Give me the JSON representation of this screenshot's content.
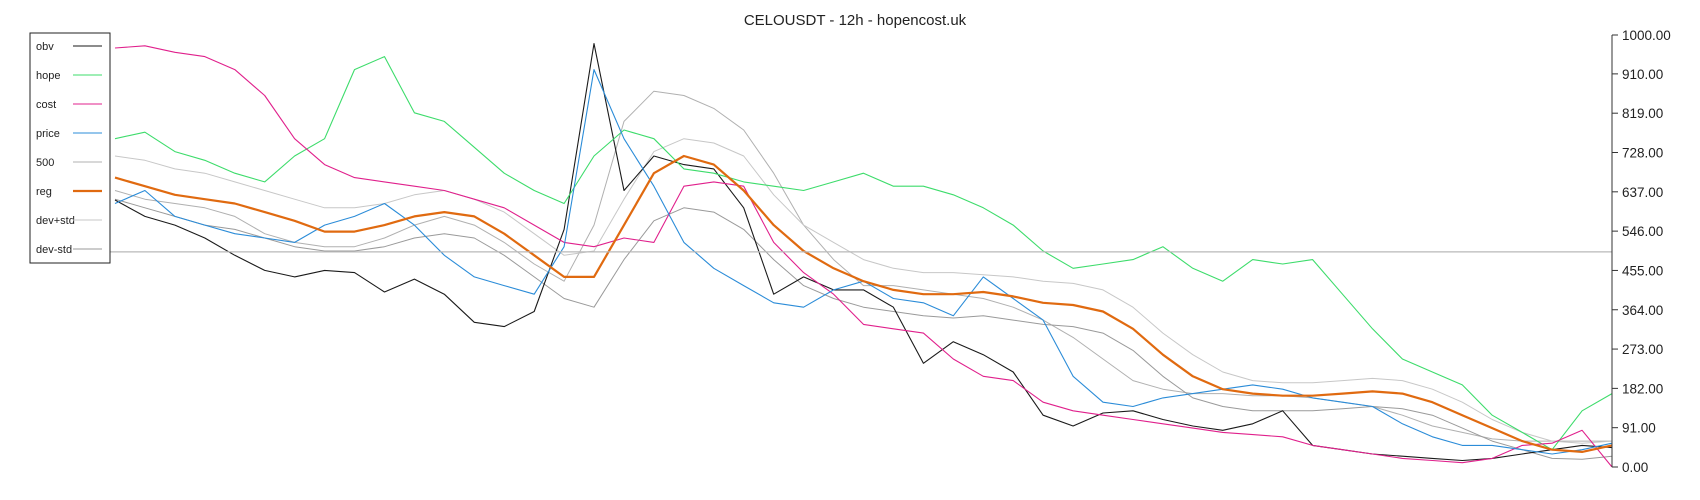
{
  "chart_data": {
    "type": "line",
    "title": "CELOUSDT - 12h - hopencost.uk",
    "x": [
      0,
      2,
      4,
      6,
      8,
      10,
      12,
      14,
      16,
      18,
      20,
      22,
      24,
      26,
      28,
      30,
      32,
      34,
      36,
      38,
      40,
      42,
      44,
      46,
      48,
      50,
      52,
      54,
      56,
      58,
      60,
      62,
      64,
      66,
      68,
      70,
      72,
      74,
      76,
      78,
      80,
      82,
      84,
      86,
      88,
      90,
      92,
      94,
      96,
      98,
      100
    ],
    "ylim": [
      0,
      1000
    ],
    "yticks": [
      0,
      91,
      182,
      273,
      364,
      455,
      546,
      637,
      728,
      819,
      910,
      1000
    ],
    "ytick_labels": [
      "0.00",
      "91.00",
      "182.00",
      "273.00",
      "364.00",
      "455.00",
      "546.00",
      "637.00",
      "728.00",
      "819.00",
      "910.00",
      "1000.00"
    ],
    "hline": 498,
    "grid": false,
    "legend_position": "top-left",
    "series": [
      {
        "name": "obv",
        "color": "#1a1a1a",
        "width": 1.1,
        "values": [
          618,
          580,
          560,
          530,
          490,
          455,
          440,
          455,
          450,
          405,
          435,
          400,
          335,
          325,
          360,
          550,
          980,
          640,
          720,
          700,
          690,
          600,
          400,
          440,
          410,
          410,
          370,
          240,
          290,
          260,
          220,
          120,
          95,
          125,
          130,
          110,
          95,
          85,
          100,
          130,
          50,
          40,
          30,
          25,
          20,
          15,
          20,
          30,
          40,
          50,
          45
        ]
      },
      {
        "name": "hope",
        "color": "#3ddc6b",
        "width": 1.1,
        "values": [
          760,
          775,
          730,
          710,
          680,
          660,
          720,
          760,
          920,
          950,
          820,
          800,
          740,
          680,
          640,
          610,
          720,
          780,
          760,
          690,
          680,
          660,
          650,
          640,
          660,
          680,
          650,
          650,
          630,
          600,
          560,
          500,
          460,
          470,
          480,
          510,
          460,
          430,
          480,
          470,
          480,
          400,
          320,
          250,
          220,
          190,
          120,
          80,
          40,
          130,
          170
        ]
      },
      {
        "name": "cost",
        "color": "#e0208c",
        "width": 1.1,
        "values": [
          970,
          975,
          960,
          950,
          920,
          860,
          760,
          700,
          670,
          660,
          650,
          640,
          620,
          600,
          560,
          520,
          510,
          530,
          520,
          650,
          660,
          650,
          520,
          450,
          400,
          330,
          320,
          310,
          250,
          210,
          200,
          150,
          130,
          120,
          110,
          100,
          90,
          80,
          75,
          70,
          50,
          40,
          30,
          20,
          15,
          10,
          20,
          50,
          55,
          85,
          0
        ]
      },
      {
        "name": "price",
        "color": "#2b8cd8",
        "width": 1.1,
        "values": [
          610,
          640,
          580,
          560,
          540,
          530,
          520,
          560,
          580,
          610,
          560,
          490,
          440,
          420,
          400,
          510,
          920,
          760,
          650,
          520,
          460,
          420,
          380,
          370,
          410,
          430,
          390,
          380,
          350,
          440,
          390,
          340,
          210,
          150,
          140,
          160,
          170,
          180,
          190,
          180,
          160,
          150,
          140,
          100,
          70,
          50,
          50,
          40,
          30,
          40,
          55
        ]
      },
      {
        "name": "500",
        "color": "#b0b0b0",
        "width": 1.0,
        "values": [
          640,
          620,
          610,
          600,
          580,
          540,
          520,
          510,
          510,
          530,
          560,
          580,
          560,
          520,
          470,
          430,
          560,
          800,
          870,
          860,
          830,
          780,
          680,
          560,
          480,
          420,
          420,
          410,
          400,
          390,
          370,
          340,
          300,
          250,
          200,
          180,
          170,
          170,
          165,
          165,
          160,
          150,
          140,
          120,
          95,
          80,
          65,
          60,
          60,
          60,
          60
        ]
      },
      {
        "name": "reg",
        "color": "#e06a10",
        "width": 2.2,
        "values": [
          670,
          650,
          630,
          620,
          610,
          590,
          570,
          545,
          545,
          560,
          580,
          590,
          580,
          540,
          490,
          440,
          440,
          560,
          680,
          720,
          700,
          640,
          560,
          500,
          460,
          430,
          410,
          400,
          400,
          405,
          395,
          380,
          375,
          360,
          320,
          260,
          210,
          180,
          170,
          165,
          165,
          170,
          175,
          170,
          150,
          120,
          90,
          60,
          40,
          35,
          50
        ]
      },
      {
        "name": "dev+std",
        "color": "#c7c7c7",
        "width": 1.0,
        "values": [
          720,
          710,
          690,
          680,
          660,
          640,
          620,
          600,
          600,
          610,
          630,
          640,
          620,
          590,
          540,
          490,
          500,
          620,
          730,
          760,
          750,
          720,
          630,
          560,
          520,
          480,
          460,
          450,
          450,
          445,
          440,
          430,
          425,
          410,
          370,
          310,
          260,
          220,
          200,
          195,
          195,
          200,
          205,
          200,
          180,
          150,
          110,
          80,
          60,
          55,
          60
        ]
      },
      {
        "name": "dev-std",
        "color": "#9a9a9a",
        "width": 1.0,
        "values": [
          620,
          600,
          580,
          560,
          550,
          530,
          510,
          500,
          500,
          510,
          530,
          540,
          530,
          490,
          440,
          390,
          370,
          480,
          570,
          600,
          590,
          550,
          480,
          420,
          390,
          370,
          360,
          350,
          345,
          350,
          340,
          330,
          325,
          310,
          270,
          210,
          160,
          140,
          130,
          130,
          130,
          135,
          140,
          135,
          120,
          90,
          60,
          40,
          20,
          18,
          25
        ]
      }
    ]
  }
}
